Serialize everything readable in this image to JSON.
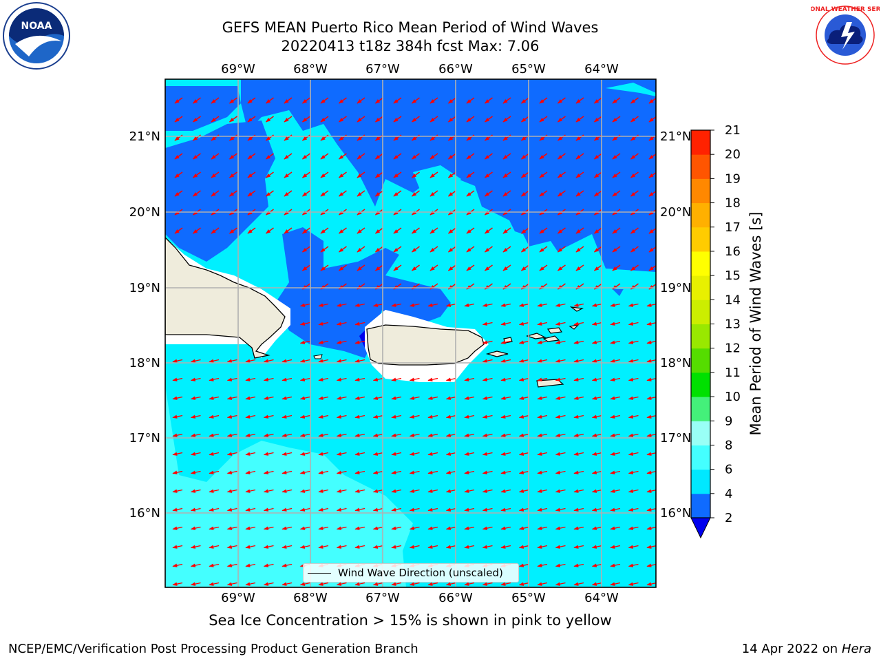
{
  "header": {
    "title_line1": "GEFS MEAN Puerto Rico Mean Period of Wind Waves",
    "title_line2": "20220413 t18z 384h fcst   Max: 7.06"
  },
  "logos": {
    "left": {
      "icon": "noaa-logo",
      "text": "NOAA"
    },
    "right": {
      "icon": "nws-logo",
      "text": "NATIONAL WEATHER SERVICE"
    }
  },
  "map": {
    "lon_labels": [
      "69°W",
      "68°W",
      "67°W",
      "66°W",
      "65°W",
      "64°W"
    ],
    "lat_labels": [
      "21°N",
      "20°N",
      "19°N",
      "18°N",
      "17°N",
      "16°N"
    ],
    "legend_label": "Wind Wave Direction (unscaled)",
    "arrow_color": "#ff0000",
    "land_color": "#efecdc"
  },
  "colorbar": {
    "label": "Mean Period of Wind Waves [s]",
    "ticks": [
      "2",
      "4",
      "6",
      "8",
      "9",
      "10",
      "11",
      "12",
      "13",
      "14",
      "15",
      "16",
      "17",
      "18",
      "19",
      "20",
      "21"
    ],
    "colors": [
      "#0f6bff",
      "#00e8ff",
      "#44ffff",
      "#99fff6",
      "#44f07a",
      "#00e000",
      "#55dd00",
      "#99e800",
      "#ccee00",
      "#e8f000",
      "#ffff00",
      "#ffcc00",
      "#ffb000",
      "#ff8800",
      "#ff5500",
      "#ff2200",
      "#ff0000"
    ],
    "under_color": "#0000ee"
  },
  "footer": {
    "note": "Sea Ice Concentration > 15% is shown in pink to yellow",
    "left": "NCEP/EMC/Verification Post Processing Product Generation Branch",
    "date": "14 Apr 2022 on ",
    "host": "Hera"
  }
}
